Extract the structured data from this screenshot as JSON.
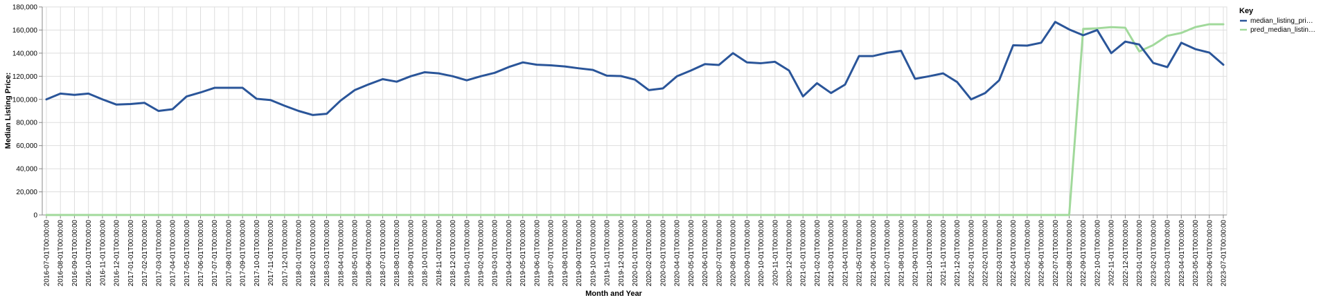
{
  "chart_data": {
    "type": "line",
    "xlabel": "Month and Year",
    "ylabel": "Median Listing Price:",
    "ylim": [
      0,
      180000
    ],
    "yticks": [
      "0",
      "20,000",
      "40,000",
      "60,000",
      "80,000",
      "100,000",
      "120,000",
      "140,000",
      "160,000",
      "180,000"
    ],
    "y_tick_values": [
      0,
      20000,
      40000,
      60000,
      80000,
      100000,
      120000,
      140000,
      160000,
      180000
    ],
    "grid": true,
    "legend_position": "right",
    "legend_title": "Key",
    "x": [
      "2016-07-01T00:00:00",
      "2016-08-01T00:00:00",
      "2016-09-01T00:00:00",
      "2016-10-01T00:00:00",
      "2016-11-01T00:00:00",
      "2016-12-01T00:00:00",
      "2017-01-01T00:00:00",
      "2017-02-01T00:00:00",
      "2017-03-01T00:00:00",
      "2017-04-01T00:00:00",
      "2017-05-01T00:00:00",
      "2017-06-01T00:00:00",
      "2017-07-01T00:00:00",
      "2017-08-01T00:00:00",
      "2017-09-01T00:00:00",
      "2017-10-01T00:00:00",
      "2017-11-01T00:00:00",
      "2017-12-01T00:00:00",
      "2018-01-01T00:00:00",
      "2018-02-01T00:00:00",
      "2018-03-01T00:00:00",
      "2018-04-01T00:00:00",
      "2018-05-01T00:00:00",
      "2018-06-01T00:00:00",
      "2018-07-01T00:00:00",
      "2018-08-01T00:00:00",
      "2018-09-01T00:00:00",
      "2018-10-01T00:00:00",
      "2018-11-01T00:00:00",
      "2018-12-01T00:00:00",
      "2019-01-01T00:00:00",
      "2019-02-01T00:00:00",
      "2019-03-01T00:00:00",
      "2019-04-01T00:00:00",
      "2019-05-01T00:00:00",
      "2019-06-01T00:00:00",
      "2019-07-01T00:00:00",
      "2019-08-01T00:00:00",
      "2019-09-01T00:00:00",
      "2019-10-01T00:00:00",
      "2019-11-01T00:00:00",
      "2019-12-01T00:00:00",
      "2020-01-01T00:00:00",
      "2020-02-01T00:00:00",
      "2020-03-01T00:00:00",
      "2020-04-01T00:00:00",
      "2020-05-01T00:00:00",
      "2020-06-01T00:00:00",
      "2020-07-01T00:00:00",
      "2020-08-01T00:00:00",
      "2020-09-01T00:00:00",
      "2020-10-01T00:00:00",
      "2020-11-01T00:00:00",
      "2020-12-01T00:00:00",
      "2021-01-01T00:00:00",
      "2021-02-01T00:00:00",
      "2021-03-01T00:00:00",
      "2021-04-01T00:00:00",
      "2021-05-01T00:00:00",
      "2021-06-01T00:00:00",
      "2021-07-01T00:00:00",
      "2021-08-01T00:00:00",
      "2021-09-01T00:00:00",
      "2021-10-01T00:00:00",
      "2021-11-01T00:00:00",
      "2021-12-01T00:00:00",
      "2022-01-01T00:00:00",
      "2022-02-01T00:00:00",
      "2022-03-01T00:00:00",
      "2022-04-01T00:00:00",
      "2022-05-01T00:00:00",
      "2022-06-01T00:00:00",
      "2022-07-01T00:00:00",
      "2022-08-01T00:00:00",
      "2022-09-01T00:00:00",
      "2022-10-01T00:00:00",
      "2022-11-01T00:00:00",
      "2022-12-01T00:00:00",
      "2023-01-01T00:00:00",
      "2023-02-01T00:00:00",
      "2023-03-01T00:00:00",
      "2023-04-01T00:00:00",
      "2023-05-01T00:00:00",
      "2023-06-01T00:00:00",
      "2023-07-01T00:00:00"
    ],
    "series": [
      {
        "name": "median_listing_pri…",
        "color": "#2a5599",
        "values": [
          100000,
          105000,
          103900,
          105000,
          100000,
          95500,
          96000,
          97000,
          90000,
          91500,
          102500,
          106000,
          110000,
          110000,
          110000,
          100500,
          99400,
          94500,
          90000,
          86500,
          87500,
          99000,
          108000,
          113000,
          117500,
          115300,
          120000,
          123500,
          122500,
          120000,
          116500,
          120000,
          123000,
          128000,
          132000,
          130000,
          129500,
          128500,
          126900,
          125500,
          120500,
          120200,
          117100,
          108000,
          109500,
          120000,
          125000,
          130500,
          129800,
          140000,
          132000,
          131300,
          132500,
          125000,
          102600,
          114000,
          105500,
          112800,
          137500,
          137500,
          140300,
          142000,
          117800,
          120000,
          122500,
          115000,
          100000,
          105500,
          116500,
          146800,
          146500,
          149000,
          167000,
          160500,
          155500,
          160000,
          140000,
          150000,
          147500,
          131500,
          127900,
          149000,
          143500,
          140500,
          130000
        ]
      },
      {
        "name": "pred_median_listin…",
        "color": "#a1d99b",
        "values": [
          0,
          0,
          0,
          0,
          0,
          0,
          0,
          0,
          0,
          0,
          0,
          0,
          0,
          0,
          0,
          0,
          0,
          0,
          0,
          0,
          0,
          0,
          0,
          0,
          0,
          0,
          0,
          0,
          0,
          0,
          0,
          0,
          0,
          0,
          0,
          0,
          0,
          0,
          0,
          0,
          0,
          0,
          0,
          0,
          0,
          0,
          0,
          0,
          0,
          0,
          0,
          0,
          0,
          0,
          0,
          0,
          0,
          0,
          0,
          0,
          0,
          0,
          0,
          0,
          0,
          0,
          0,
          0,
          0,
          0,
          0,
          0,
          0,
          0,
          161000,
          161500,
          162500,
          162000,
          141500,
          147000,
          155000,
          157500,
          162500,
          165000,
          165000
        ]
      }
    ]
  }
}
